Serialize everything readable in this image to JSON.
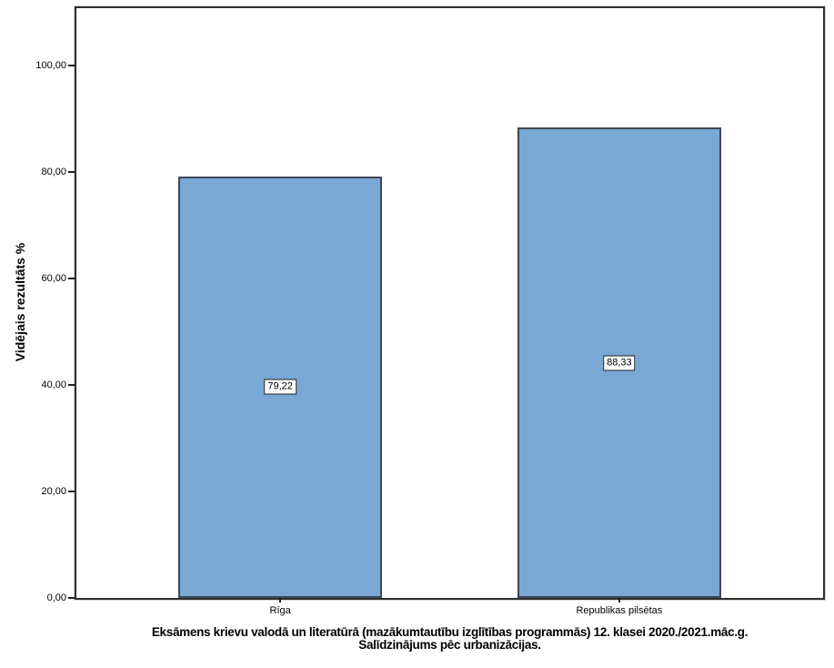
{
  "chart_data": {
    "type": "bar",
    "categories": [
      "Rīga",
      "Republikas pilsētas"
    ],
    "values": [
      79.22,
      88.33
    ],
    "value_labels": [
      "79,22",
      "88,33"
    ],
    "yticks": [
      0,
      20,
      40,
      60,
      80,
      100
    ],
    "ytick_labels": [
      "0,00",
      "20,00",
      "40,00",
      "60,00",
      "80,00",
      "100,00"
    ],
    "ylim": [
      0,
      110.8
    ],
    "ylabel": "Vidējais rezultāts %",
    "xlabel": "",
    "title": "Eksāmens krievu valodā un literatūrā (mazākumtautību izglītības programmās) 12. klasei 2020./2021.māc.g.",
    "subtitle": "Salīdzinājums pēc urbanizācijas.",
    "grid": false,
    "legend": "none",
    "colors": {
      "bar_fill": "#7AA8D4",
      "bar_border": "#3C4756",
      "frame_border": "#2E2E2E",
      "value_label_bg": "#FFFFFF",
      "value_label_border": "#1F1F1F"
    }
  }
}
